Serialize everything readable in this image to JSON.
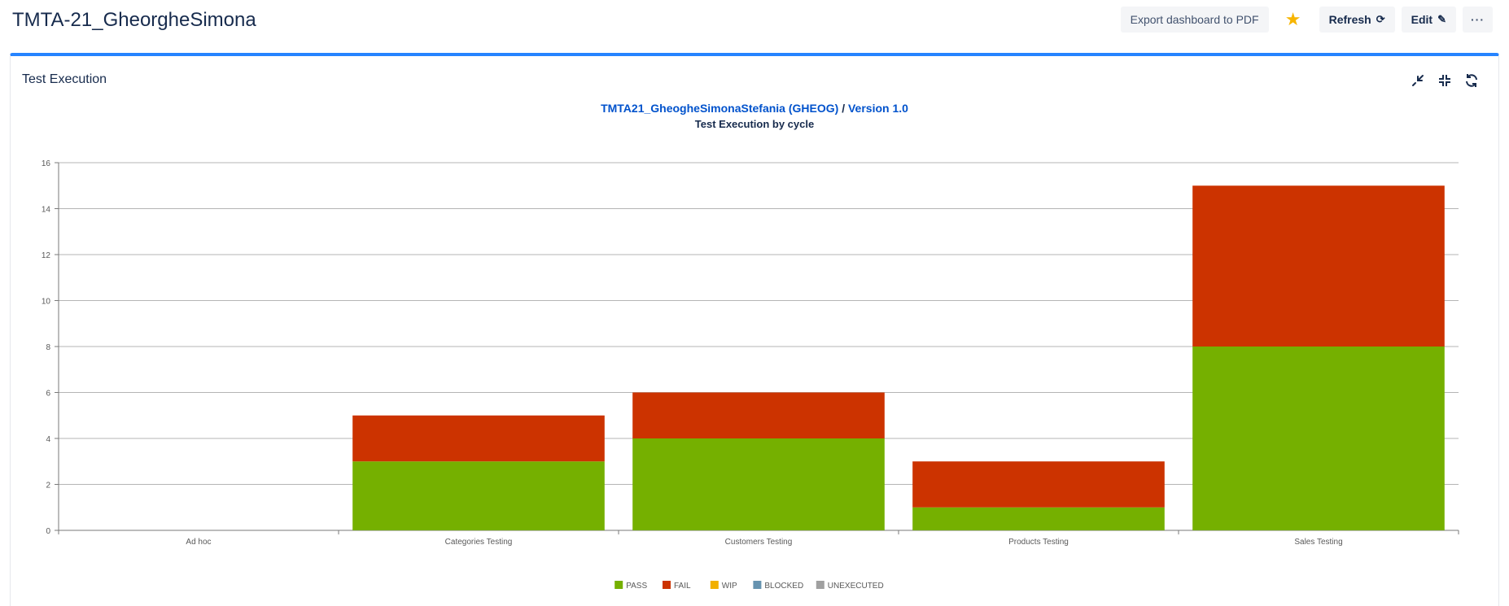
{
  "page": {
    "title": "TMTA-21_GheorgheSimona"
  },
  "toolbar": {
    "export_label": "Export dashboard to PDF",
    "refresh_label": "Refresh",
    "edit_label": "Edit",
    "more_label": "···",
    "icons": [
      "star-icon",
      "refresh-icon",
      "pencil-icon",
      "more-icon"
    ],
    "star_color": "#f7b500"
  },
  "gadget": {
    "title": "Test Execution",
    "accent_color": "#2684ff",
    "heading": {
      "project_link": "TMTA21_GheogheSimonaStefania (GHEOG)",
      "separator": "/",
      "version_link": "Version 1.0",
      "subtitle": "Test Execution by cycle"
    },
    "tools": [
      "minimize-icon",
      "collapse-icon",
      "refresh-icon"
    ]
  },
  "chart_data": {
    "type": "bar",
    "stacked": true,
    "categories": [
      "Ad hoc",
      "Categories Testing",
      "Customers Testing",
      "Products Testing",
      "Sales Testing"
    ],
    "series": [
      {
        "name": "PASS",
        "color": "#75b000",
        "values": [
          0,
          3,
          4,
          1,
          8
        ]
      },
      {
        "name": "FAIL",
        "color": "#cc3300",
        "values": [
          0,
          2,
          2,
          2,
          7
        ]
      },
      {
        "name": "WIP",
        "color": "#f2b000",
        "values": [
          0,
          0,
          0,
          0,
          0
        ]
      },
      {
        "name": "BLOCKED",
        "color": "#6693b0",
        "values": [
          0,
          0,
          0,
          0,
          0
        ]
      },
      {
        "name": "UNEXECUTED",
        "color": "#a0a0a0",
        "values": [
          0,
          0,
          0,
          0,
          0
        ]
      }
    ],
    "ylim": [
      0,
      16
    ],
    "yticks": [
      0,
      2,
      4,
      6,
      8,
      10,
      12,
      14,
      16
    ],
    "grid": true,
    "legend": "bottom-center"
  }
}
